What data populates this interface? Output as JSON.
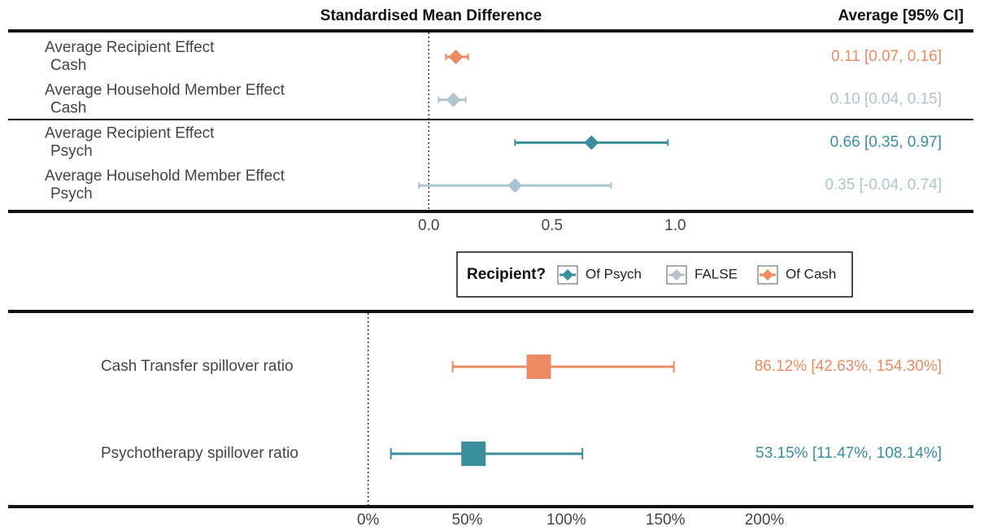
{
  "chart_data": [
    {
      "type": "forest",
      "marker": "diamond",
      "header": "Standardised Mean Difference",
      "value_header": "Average [95% CI]",
      "categories": [
        [
          "Average Recipient Effect",
          "Cash"
        ],
        [
          "Average Household Member Effect",
          "Cash"
        ],
        [
          "Average Recipient Effect",
          "Psych"
        ],
        [
          "Average Household Member Effect",
          "Psych"
        ]
      ],
      "values": [
        0.11,
        0.1,
        0.66,
        0.35
      ],
      "lower": [
        0.07,
        0.04,
        0.35,
        -0.04
      ],
      "upper": [
        0.16,
        0.15,
        0.97,
        0.74
      ],
      "value_labels": [
        "0.11 [0.07, 0.16]",
        "0.10 [0.04, 0.15]",
        "0.66 [0.35, 0.97]",
        "0.35 [-0.04, 0.74]"
      ],
      "colors": [
        "#ec8a63",
        "#b3c3ca",
        "#3a8e9e",
        "#aac5d2"
      ],
      "reference_line": 0,
      "xlim": [
        -0.4,
        1.2
      ],
      "xticks": [
        {
          "value": 0,
          "label": "0.0"
        },
        0.5,
        {
          "value": 1,
          "label": "1.0"
        }
      ],
      "legend": {
        "title": "Recipient?",
        "entries": [
          {
            "name": "Of Psych",
            "color": "#3a8e9e"
          },
          {
            "name": "FALSE",
            "color": "#b3c3ca"
          },
          {
            "name": "Of Cash",
            "color": "#ec8a63"
          }
        ]
      }
    },
    {
      "type": "forest",
      "marker": "square",
      "categories": [
        [
          "Cash Transfer spillover ratio"
        ],
        [
          "Psychotherapy spillover ratio"
        ]
      ],
      "values": [
        86.12,
        53.15
      ],
      "lower": [
        42.63,
        11.47
      ],
      "upper": [
        154.3,
        108.14
      ],
      "value_labels": [
        "86.12% [42.63%, 154.30%]",
        "53.15% [11.47%, 108.14%]"
      ],
      "colors": [
        "#ec8a63",
        "#3a8e9e"
      ],
      "reference_line": 0,
      "xlim": [
        -20,
        200
      ],
      "xticks": [
        {
          "value": 0,
          "label": "0%"
        },
        {
          "value": 50,
          "label": "50%"
        },
        {
          "value": 100,
          "label": "100%"
        },
        {
          "value": 150,
          "label": "150%"
        },
        {
          "value": 200,
          "label": "200%"
        }
      ]
    }
  ]
}
